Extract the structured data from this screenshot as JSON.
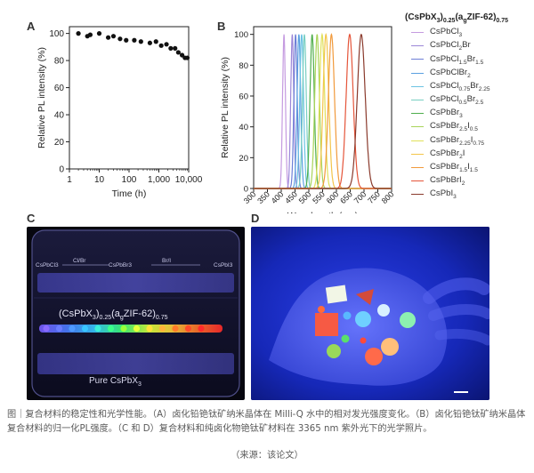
{
  "panels": {
    "a": {
      "letter": "A"
    },
    "b": {
      "letter": "B"
    },
    "c": {
      "letter": "C"
    },
    "d": {
      "letter": "D"
    }
  },
  "chart_data": [
    {
      "type": "scatter",
      "title": "",
      "xlabel": "Time (h)",
      "ylabel": "Relative PL intensity (%)",
      "xscale": "log",
      "xlim": [
        1,
        10000
      ],
      "ylim": [
        0,
        105
      ],
      "xticks": [
        "1",
        "10",
        "100",
        "1,000",
        "10,000"
      ],
      "yticks": [
        "0",
        "20",
        "40",
        "60",
        "80",
        "100"
      ],
      "x": [
        2,
        4,
        5,
        10,
        20,
        30,
        50,
        80,
        150,
        250,
        500,
        800,
        1200,
        1800,
        2500,
        3500,
        4500,
        6000,
        7500,
        9000
      ],
      "y": [
        100,
        98,
        99,
        100,
        97,
        98,
        96,
        95,
        95,
        94,
        93,
        94,
        91,
        92,
        89,
        89,
        86,
        84,
        82,
        82
      ]
    },
    {
      "type": "line",
      "title": "",
      "xlabel": "Wavelength (nm)",
      "ylabel": "Relative PL intensity (%)",
      "xlim": [
        300,
        800
      ],
      "ylim": [
        0,
        105
      ],
      "xticks": [
        "300",
        "350",
        "400",
        "450",
        "500",
        "550",
        "600",
        "650",
        "700",
        "750",
        "800"
      ],
      "yticks": [
        "0",
        "20",
        "40",
        "60",
        "80",
        "100"
      ],
      "legend_position": "right",
      "legend_title": {
        "main": "(CsPbX",
        "sub1": "3",
        "mid1": ")",
        "sub2": "0.25",
        "mid2": "(a",
        "sub3": "g",
        "mid3": "ZIF-62)",
        "sub4": "0.75"
      },
      "series": [
        {
          "name": "CsPbCl3",
          "label": {
            "pre": "CsPbCl",
            "sub": "3",
            "post": "",
            "sub2": ""
          },
          "peak": 410,
          "fwhm": 12,
          "color": "#c59be0"
        },
        {
          "name": "CsPbCl2Br",
          "label": {
            "pre": "CsPbCl",
            "sub": "2",
            "post": "Br",
            "sub2": ""
          },
          "peak": 440,
          "fwhm": 13,
          "color": "#9c87d8"
        },
        {
          "name": "CsPbCl1.5Br1.5",
          "label": {
            "pre": "CsPbCl",
            "sub": "1.5",
            "post": "Br",
            "sub2": "1.5"
          },
          "peak": 452,
          "fwhm": 14,
          "color": "#6d7fd6"
        },
        {
          "name": "CsPbClBr2",
          "label": {
            "pre": "CsPbClBr",
            "sub": "2",
            "post": "",
            "sub2": ""
          },
          "peak": 464,
          "fwhm": 15,
          "color": "#5aa0e0"
        },
        {
          "name": "CsPbCl0.75Br2.25",
          "label": {
            "pre": "CsPbCl",
            "sub": "0.75",
            "post": "Br",
            "sub2": "2.25"
          },
          "peak": 474,
          "fwhm": 16,
          "color": "#6cc3e3"
        },
        {
          "name": "CsPbCl0.5Br2.5",
          "label": {
            "pre": "CsPbCl",
            "sub": "0.5",
            "post": "Br",
            "sub2": "2.5"
          },
          "peak": 484,
          "fwhm": 16,
          "color": "#78cfc2"
        },
        {
          "name": "CsPbBr3",
          "label": {
            "pre": "CsPbBr",
            "sub": "3",
            "post": "",
            "sub2": ""
          },
          "peak": 512,
          "fwhm": 18,
          "color": "#4fae4c"
        },
        {
          "name": "CsPbBr2.5I0.5",
          "label": {
            "pre": "CsPbBr",
            "sub": "2.5",
            "post": "I",
            "sub2": "0.5"
          },
          "peak": 530,
          "fwhm": 20,
          "color": "#a9d45a"
        },
        {
          "name": "CsPbBr2.25I0.75",
          "label": {
            "pre": "CsPbBr",
            "sub": "2.25",
            "post": "I",
            "sub2": "0.75"
          },
          "peak": 548,
          "fwhm": 22,
          "color": "#e0e05a"
        },
        {
          "name": "CsPbBr2I",
          "label": {
            "pre": "CsPbBr",
            "sub": "2",
            "post": "I",
            "sub2": ""
          },
          "peak": 562,
          "fwhm": 24,
          "color": "#f3c54a"
        },
        {
          "name": "CsPbBr1.5I1.5",
          "label": {
            "pre": "CsPbBr",
            "sub": "1.5",
            "post": "I",
            "sub2": "1.5"
          },
          "peak": 582,
          "fwhm": 26,
          "color": "#f19a3c"
        },
        {
          "name": "CsPbBrI2",
          "label": {
            "pre": "CsPbBrI",
            "sub": "2",
            "post": "",
            "sub2": ""
          },
          "peak": 648,
          "fwhm": 30,
          "color": "#e5553a"
        },
        {
          "name": "CsPbI3",
          "label": {
            "pre": "CsPbI",
            "sub": "3",
            "post": "",
            "sub2": ""
          },
          "peak": 690,
          "fwhm": 34,
          "color": "#8a3a2c"
        }
      ]
    }
  ],
  "photo_c": {
    "top_labels": [
      "CsPbCl3",
      "Cl/Br",
      "CsPbBr3",
      "Br/I",
      "CsPbI3"
    ],
    "composite": {
      "main": "(CsPbX",
      "sub1": "3",
      "mid1": ")",
      "sub2": "0.25",
      "mid2": "(a",
      "sub3": "g",
      "mid3": "ZIF-62)",
      "sub4": "0.75"
    },
    "bottom": {
      "main": "Pure CsPbX",
      "sub": "3"
    }
  },
  "caption": {
    "text": "图｜复合材料的稳定性和光学性能。（A）卤化铅铯钛矿纳米晶体在 Milli-Q 水中的相对发光强度变化。（B）卤化铅铯钛矿纳米晶体复合材料的归一化PL强度。（C 和 D）复合材料和纯卤化物铯钛矿材料在 3365 nm 紫外光下的光学照片。",
    "source": "（来源：该论文）"
  }
}
